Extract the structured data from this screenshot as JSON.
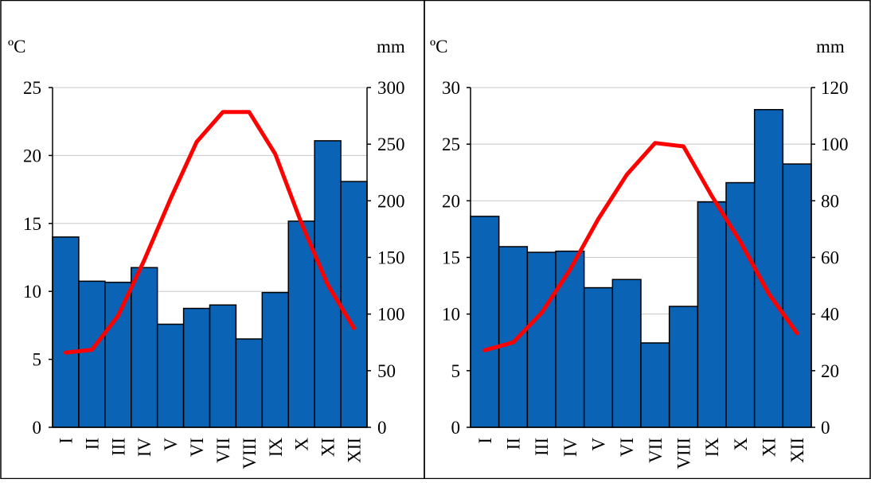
{
  "chart_data": [
    {
      "type": "bar",
      "categories": [
        "I",
        "II",
        "III",
        "IV",
        "V",
        "VI",
        "VII",
        "VIII",
        "IX",
        "X",
        "XI",
        "XII"
      ],
      "y_left_unit": "ºC",
      "y_right_unit": "mm",
      "y_left_ticks": [
        "0",
        "5",
        "10",
        "15",
        "20",
        "25"
      ],
      "y_right_ticks": [
        "0",
        "50",
        "100",
        "150",
        "200",
        "250",
        "300"
      ],
      "ylim_left": [
        0,
        25
      ],
      "ylim_right": [
        0,
        300
      ],
      "grid": true,
      "bar_color": "#0A63B4",
      "line_color": "#FF0000",
      "series": [
        {
          "type": "bar",
          "axis": "right",
          "values": [
            168,
            129,
            128,
            141,
            91,
            105,
            108,
            78,
            119,
            182,
            253,
            217
          ]
        },
        {
          "type": "line",
          "axis": "left",
          "values": [
            5.5,
            5.7,
            8.2,
            12.3,
            16.8,
            21.0,
            23.2,
            23.2,
            20.1,
            15.0,
            10.5,
            7.3
          ]
        }
      ]
    },
    {
      "type": "bar",
      "categories": [
        "I",
        "II",
        "III",
        "IV",
        "V",
        "VI",
        "VII",
        "VIII",
        "IX",
        "X",
        "XI",
        "XII"
      ],
      "y_left_unit": "ºC",
      "y_right_unit": "mm",
      "y_left_ticks": [
        "0",
        "5",
        "10",
        "15",
        "20",
        "25",
        "30"
      ],
      "y_right_ticks": [
        "0",
        "20",
        "40",
        "60",
        "80",
        "100",
        "120"
      ],
      "ylim_left": [
        0,
        30
      ],
      "ylim_right": [
        0,
        120
      ],
      "grid": true,
      "bar_color": "#0A63B4",
      "line_color": "#FF0000",
      "series": [
        {
          "type": "bar",
          "axis": "right",
          "values": [
            74.5,
            63.8,
            61.8,
            62.2,
            49.3,
            52.2,
            29.8,
            42.7,
            79.6,
            86.4,
            112.2,
            93.0
          ]
        },
        {
          "type": "line",
          "axis": "left",
          "values": [
            6.8,
            7.5,
            10.1,
            13.9,
            18.4,
            22.3,
            25.1,
            24.8,
            20.4,
            16.4,
            11.8,
            8.3
          ]
        }
      ]
    }
  ]
}
